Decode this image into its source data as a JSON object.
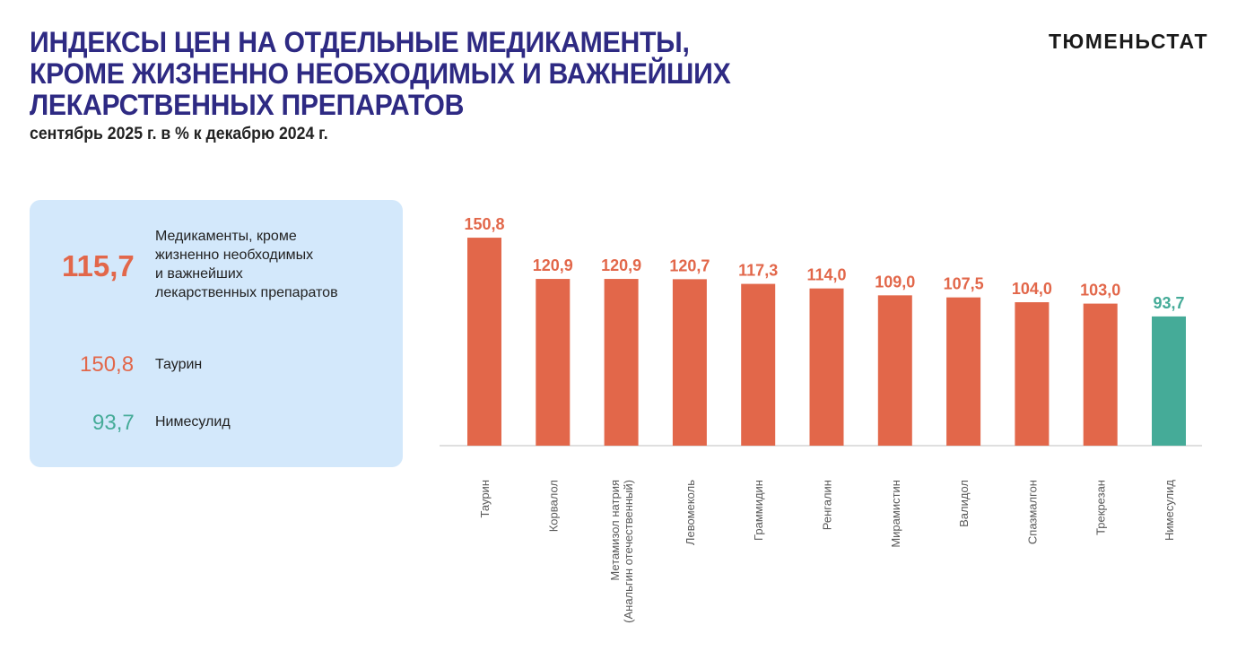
{
  "header": {
    "title_lines": [
      "ИНДЕКСЫ ЦЕН НА ОТДЕЛЬНЫЕ МЕДИКАМЕНТЫ,",
      "КРОМЕ ЖИЗНЕННО НЕОБХОДИМЫХ И ВАЖНЕЙШИХ",
      "ЛЕКАРСТВЕННЫХ ПРЕПАРАТОВ"
    ],
    "subtitle": "сентябрь 2025 г. в % к декабрю 2024 г.",
    "brand": "ТЮМЕНЬСТАТ"
  },
  "panel": {
    "total_value": "115,7",
    "total_label_lines": [
      "Медикаменты, кроме",
      "жизненно необходимых",
      "и важнейших",
      "лекарственных препаратов"
    ],
    "max_value": "150,8",
    "max_label": "Таурин",
    "min_value": "93,7",
    "min_label": "Нимесулид"
  },
  "colors": {
    "title": "#2E2A83",
    "bar": "#E2674A",
    "bar_min": "#45AB98",
    "panel": "#D3E8FB"
  },
  "chart_data": {
    "type": "bar",
    "title": "",
    "xlabel": "",
    "ylabel": "",
    "ylim": [
      0,
      155
    ],
    "grid": false,
    "categories": [
      [
        "Таурин"
      ],
      [
        "Корвалол"
      ],
      [
        "Метамизол натрия",
        "(Анальгин отечественный)"
      ],
      [
        "Левомеколь"
      ],
      [
        "Граммидин"
      ],
      [
        "Ренгалин"
      ],
      [
        "Мирамистин"
      ],
      [
        "Валидол"
      ],
      [
        "Спазмалгон"
      ],
      [
        "Трекрезан"
      ],
      [
        "Нимесулид"
      ]
    ],
    "values": [
      150.8,
      120.9,
      120.9,
      120.7,
      117.3,
      114.0,
      109.0,
      107.5,
      104.0,
      103.0,
      93.7
    ],
    "value_labels": [
      "150,8",
      "120,9",
      "120,9",
      "120,7",
      "117,3",
      "114,0",
      "109,0",
      "107,5",
      "104,0",
      "103,0",
      "93,7"
    ],
    "highlight_index": 10
  }
}
